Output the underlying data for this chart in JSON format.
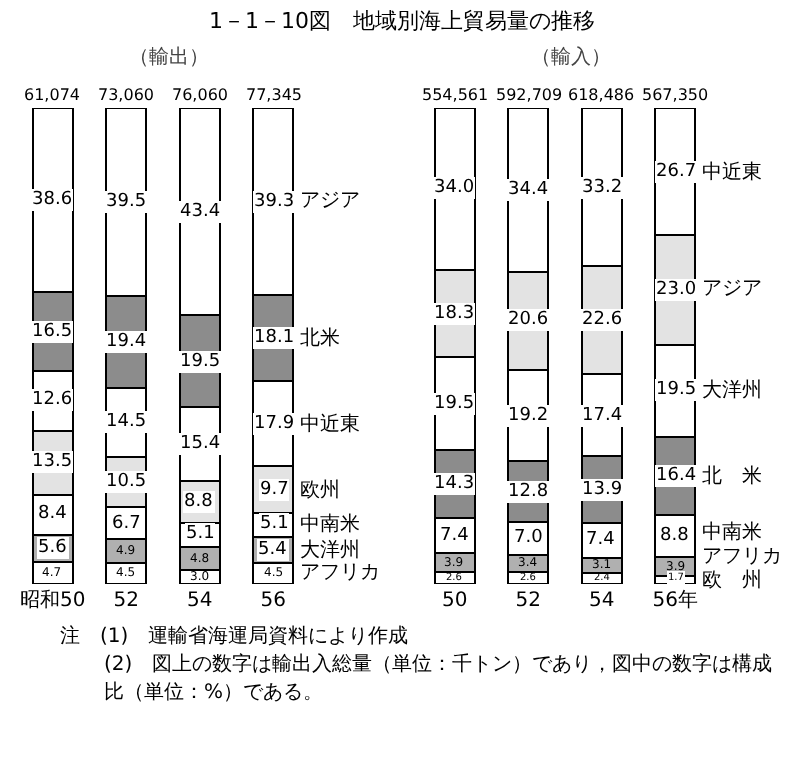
{
  "chart_data": [
    {
      "type": "bar",
      "title": "1－1－10図　地域別海上貿易量の推移",
      "subtitle": "（輸出）",
      "stacked": true,
      "tick_labels": "x",
      "categories": [
        "昭和50",
        "52",
        "54",
        "56"
      ],
      "annotations": [
        {
          "text": "61,074",
          "x": "昭和50",
          "y": 100
        },
        {
          "text": "73,060",
          "x": "52",
          "y": 100
        },
        {
          "text": "76,060",
          "x": "54",
          "y": 100
        },
        {
          "text": "77,345",
          "x": "56",
          "y": 100
        },
        "注　(1)　運輸省海運局資料により作成",
        "(2)　図上の数字は輸出入総量（単位：千トン）であり，図中の数字は構成比（単位：%）である。"
      ],
      "series": [
        {
          "name": "アフリカ",
          "color": "#ffffff",
          "values": [
            4.7,
            4.5,
            3.0,
            4.5
          ],
          "value_labels": [
            "4.7",
            "4.5",
            "3.0",
            "4.5"
          ]
        },
        {
          "name": "大洋州",
          "color": "#b0b0b0",
          "values": [
            5.6,
            4.9,
            4.8,
            5.4
          ],
          "value_labels": [
            "5.6",
            "4.9",
            "4.8",
            "5.4"
          ]
        },
        {
          "name": "中南米",
          "color": "#ffffff",
          "values": [
            8.4,
            6.7,
            5.1,
            5.1
          ],
          "value_labels": [
            "8.4",
            "6.7",
            "5.1",
            "5.1"
          ]
        },
        {
          "name": "欧州",
          "color": "#e3e3e3",
          "values": [
            13.5,
            10.5,
            8.8,
            9.7
          ],
          "value_labels": [
            "13.5",
            "10.5",
            "8.8",
            "9.7"
          ]
        },
        {
          "name": "中近東",
          "color": "#ffffff",
          "values": [
            12.6,
            14.5,
            15.4,
            17.9
          ],
          "value_labels": [
            "12.6",
            "14.5",
            "15.4",
            "17.9"
          ]
        },
        {
          "name": "北米",
          "color": "#8c8c8c",
          "values": [
            16.5,
            19.4,
            19.5,
            18.1
          ],
          "value_labels": [
            "16.5",
            "19.4",
            "19.5",
            "18.1"
          ]
        },
        {
          "name": "アジア",
          "color": "#ffffff",
          "values": [
            38.6,
            39.5,
            43.4,
            39.3
          ],
          "value_labels": [
            "38.6",
            "39.5",
            "43.4",
            "39.3"
          ]
        }
      ]
    },
    {
      "type": "bar",
      "subtitle": "（輸入）",
      "stacked": true,
      "tick_labels": "x",
      "categories": [
        "50",
        "52",
        "54",
        "56年"
      ],
      "annotations": [
        {
          "text": "554,561",
          "x": "50",
          "y": 100
        },
        {
          "text": "592,709",
          "x": "52",
          "y": 100
        },
        {
          "text": "618,486",
          "x": "54",
          "y": 100
        },
        {
          "text": "567,350",
          "x": "56年",
          "y": 100
        }
      ],
      "series": [
        {
          "name": "欧　州",
          "color": "#ffffff",
          "values": [
            2.6,
            2.6,
            2.4,
            1.7
          ],
          "value_labels": [
            "2.6",
            "2.6",
            "2.4",
            "1.7"
          ]
        },
        {
          "name": "アフリカ",
          "color": "#b0b0b0",
          "values": [
            3.9,
            3.4,
            3.1,
            3.9
          ],
          "value_labels": [
            "3.9",
            "3.4",
            "3.1",
            "3.9"
          ]
        },
        {
          "name": "中南米",
          "color": "#ffffff",
          "values": [
            7.4,
            7.0,
            7.4,
            8.8
          ],
          "value_labels": [
            "7.4",
            "7.0",
            "7.4",
            "8.8"
          ]
        },
        {
          "name": "北　米",
          "color": "#8c8c8c",
          "values": [
            14.3,
            12.8,
            13.9,
            16.4
          ],
          "value_labels": [
            "14.3",
            "12.8",
            "13.9",
            "16.4"
          ]
        },
        {
          "name": "大洋州",
          "color": "#ffffff",
          "values": [
            19.5,
            19.2,
            17.4,
            19.5
          ],
          "value_labels": [
            "19.5",
            "19.2",
            "17.4",
            "19.5"
          ]
        },
        {
          "name": "アジア",
          "color": "#e3e3e3",
          "values": [
            18.3,
            20.6,
            22.6,
            23.0
          ],
          "value_labels": [
            "18.3",
            "20.6",
            "22.6",
            "23.0"
          ]
        },
        {
          "name": "中近東",
          "color": "#ffffff",
          "values": [
            34.0,
            34.4,
            33.2,
            26.7
          ],
          "value_labels": [
            "34.0",
            "34.4",
            "33.2",
            "26.7"
          ]
        }
      ]
    }
  ]
}
